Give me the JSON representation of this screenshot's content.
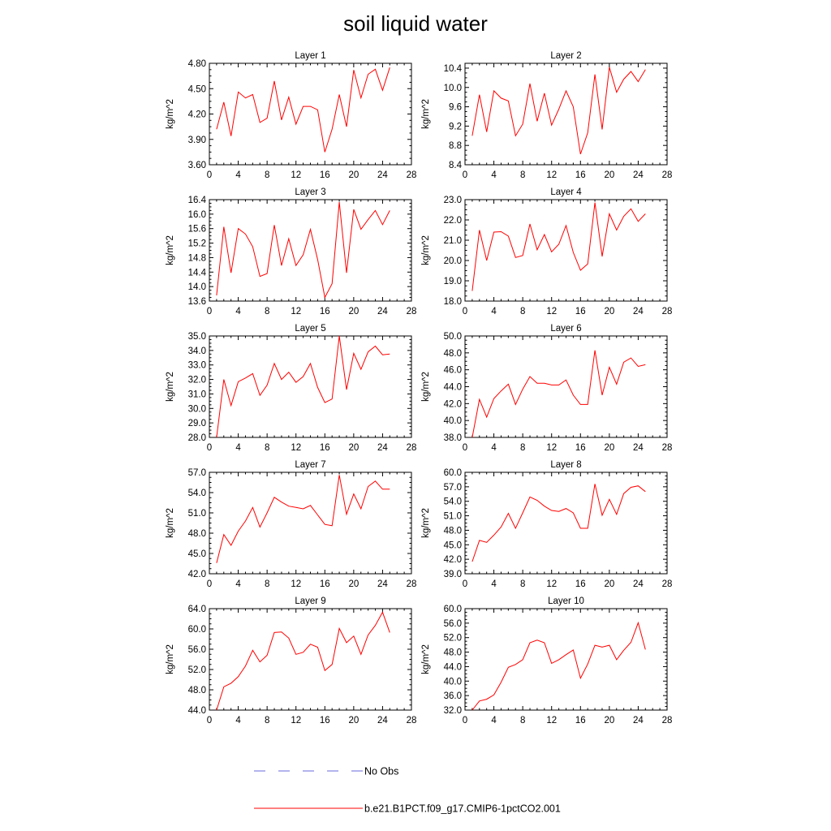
{
  "page": {
    "title": "soil liquid water"
  },
  "legend": {
    "items": [
      {
        "label": "No Obs",
        "color": "#6a6adf",
        "style": "dashed"
      },
      {
        "label": "b.e21.B1PCT.f09_g17.CMIP6-1pctCO2.001",
        "color": "#ff0000",
        "style": "solid"
      }
    ]
  },
  "chart_data": [
    {
      "type": "line",
      "title": "Layer 1",
      "ylabel": "kg/m^2",
      "xlabel": "",
      "xlim": [
        0,
        28
      ],
      "ylim": [
        3.6,
        4.8
      ],
      "xticks": [
        0,
        4,
        8,
        12,
        16,
        20,
        24,
        28
      ],
      "yticks": [
        3.6,
        3.9,
        4.2,
        4.5,
        4.8
      ],
      "ytick_labels": [
        "3.60",
        "3.90",
        "4.20",
        "4.50",
        "4.80"
      ],
      "series": [
        {
          "color": "#ff0000",
          "x": [
            1,
            2,
            3,
            4,
            5,
            6,
            7,
            8,
            9,
            10,
            11,
            12,
            13,
            14,
            15,
            16,
            17,
            18,
            19,
            20,
            21,
            22,
            23,
            24,
            25
          ],
          "y": [
            4.02,
            4.34,
            3.94,
            4.46,
            4.39,
            4.43,
            4.1,
            4.15,
            4.59,
            4.13,
            4.4,
            4.08,
            4.29,
            4.29,
            4.25,
            3.75,
            4.02,
            4.43,
            4.05,
            4.72,
            4.39,
            4.67,
            4.73,
            4.48,
            4.75
          ]
        }
      ]
    },
    {
      "type": "line",
      "title": "Layer 2",
      "ylabel": "kg/m^2",
      "xlabel": "",
      "xlim": [
        0,
        28
      ],
      "ylim": [
        8.4,
        10.5
      ],
      "xticks": [
        0,
        4,
        8,
        12,
        16,
        20,
        24,
        28
      ],
      "yticks": [
        8.4,
        8.8,
        9.2,
        9.6,
        10.0,
        10.4
      ],
      "ytick_labels": [
        "8.4",
        "8.8",
        "9.2",
        "9.6",
        "10.0",
        "10.4"
      ],
      "series": [
        {
          "color": "#ff0000",
          "x": [
            1,
            2,
            3,
            4,
            5,
            6,
            7,
            8,
            9,
            10,
            11,
            12,
            13,
            14,
            15,
            16,
            17,
            18,
            19,
            20,
            21,
            22,
            23,
            24,
            25
          ],
          "y": [
            9.0,
            9.85,
            9.08,
            9.93,
            9.78,
            9.72,
            9.0,
            9.24,
            10.08,
            9.3,
            9.88,
            9.22,
            9.55,
            9.93,
            9.6,
            8.62,
            9.06,
            10.27,
            9.13,
            10.42,
            9.9,
            10.17,
            10.33,
            10.12,
            10.37
          ]
        }
      ]
    },
    {
      "type": "line",
      "title": "Layer 3",
      "ylabel": "kg/m^2",
      "xlabel": "",
      "xlim": [
        0,
        28
      ],
      "ylim": [
        13.6,
        16.4
      ],
      "xticks": [
        0,
        4,
        8,
        12,
        16,
        20,
        24,
        28
      ],
      "yticks": [
        13.6,
        14.0,
        14.4,
        14.8,
        15.2,
        15.6,
        16.0,
        16.4
      ],
      "ytick_labels": [
        "13.6",
        "14.0",
        "14.4",
        "14.8",
        "15.2",
        "15.6",
        "16.0",
        "16.4"
      ],
      "series": [
        {
          "color": "#ff0000",
          "x": [
            1,
            2,
            3,
            4,
            5,
            6,
            7,
            8,
            9,
            10,
            11,
            12,
            13,
            14,
            15,
            16,
            17,
            18,
            19,
            20,
            21,
            22,
            23,
            24,
            25
          ],
          "y": [
            13.76,
            15.65,
            14.38,
            15.6,
            15.45,
            15.1,
            14.28,
            14.36,
            15.7,
            14.58,
            15.32,
            14.58,
            14.88,
            15.58,
            14.75,
            13.7,
            14.08,
            16.33,
            14.38,
            16.13,
            15.58,
            15.85,
            16.1,
            15.71,
            16.1
          ]
        }
      ]
    },
    {
      "type": "line",
      "title": "Layer 4",
      "ylabel": "kg/m^2",
      "xlabel": "",
      "xlim": [
        0,
        28
      ],
      "ylim": [
        18.0,
        23.0
      ],
      "xticks": [
        0,
        4,
        8,
        12,
        16,
        20,
        24,
        28
      ],
      "yticks": [
        18.0,
        19.0,
        20.0,
        21.0,
        22.0,
        23.0
      ],
      "ytick_labels": [
        "18.0",
        "19.0",
        "20.0",
        "21.0",
        "22.0",
        "23.0"
      ],
      "series": [
        {
          "color": "#ff0000",
          "x": [
            1,
            2,
            3,
            4,
            5,
            6,
            7,
            8,
            9,
            10,
            11,
            12,
            13,
            14,
            15,
            16,
            17,
            18,
            19,
            20,
            21,
            22,
            23,
            24,
            25
          ],
          "y": [
            18.5,
            21.5,
            20.0,
            21.4,
            21.42,
            21.2,
            20.15,
            20.25,
            21.8,
            20.53,
            21.28,
            20.43,
            20.8,
            21.72,
            20.4,
            19.52,
            19.83,
            22.85,
            20.2,
            22.3,
            21.5,
            22.18,
            22.55,
            21.93,
            22.3
          ]
        }
      ]
    },
    {
      "type": "line",
      "title": "Layer 5",
      "ylabel": "kg/m^2",
      "xlabel": "",
      "xlim": [
        0,
        28
      ],
      "ylim": [
        28.0,
        35.0
      ],
      "xticks": [
        0,
        4,
        8,
        12,
        16,
        20,
        24,
        28
      ],
      "yticks": [
        28.0,
        29.0,
        30.0,
        31.0,
        32.0,
        33.0,
        34.0,
        35.0
      ],
      "ytick_labels": [
        "28.0",
        "29.0",
        "30.0",
        "31.0",
        "32.0",
        "33.0",
        "34.0",
        "35.0"
      ],
      "series": [
        {
          "color": "#ff0000",
          "x": [
            1,
            2,
            3,
            4,
            5,
            6,
            7,
            8,
            9,
            10,
            11,
            12,
            13,
            14,
            15,
            16,
            17,
            18,
            19,
            20,
            21,
            22,
            23,
            24,
            25
          ],
          "y": [
            28.0,
            32.0,
            30.2,
            31.85,
            32.1,
            32.4,
            30.9,
            31.6,
            33.1,
            32.0,
            32.5,
            31.8,
            32.2,
            33.1,
            31.45,
            30.4,
            30.65,
            35.0,
            31.3,
            33.8,
            32.7,
            33.9,
            34.3,
            33.7,
            33.75
          ]
        }
      ]
    },
    {
      "type": "line",
      "title": "Layer 6",
      "ylabel": "kg/m^2",
      "xlabel": "",
      "xlim": [
        0,
        28
      ],
      "ylim": [
        38.0,
        50.0
      ],
      "xticks": [
        0,
        4,
        8,
        12,
        16,
        20,
        24,
        28
      ],
      "yticks": [
        38.0,
        40.0,
        42.0,
        44.0,
        46.0,
        48.0,
        50.0
      ],
      "ytick_labels": [
        "38.0",
        "40.0",
        "42.0",
        "44.0",
        "46.0",
        "48.0",
        "50.0"
      ],
      "series": [
        {
          "color": "#ff0000",
          "x": [
            1,
            2,
            3,
            4,
            5,
            6,
            7,
            8,
            9,
            10,
            11,
            12,
            13,
            14,
            15,
            16,
            17,
            18,
            19,
            20,
            21,
            22,
            23,
            24,
            25
          ],
          "y": [
            38.0,
            42.5,
            40.4,
            42.6,
            43.5,
            44.3,
            41.9,
            43.7,
            45.2,
            44.4,
            44.4,
            44.2,
            44.2,
            44.8,
            43.0,
            41.9,
            41.9,
            48.3,
            43.0,
            46.3,
            44.3,
            46.9,
            47.4,
            46.4,
            46.6
          ]
        }
      ]
    },
    {
      "type": "line",
      "title": "Layer 7",
      "ylabel": "kg/m^2",
      "xlabel": "",
      "xlim": [
        0,
        28
      ],
      "ylim": [
        42.0,
        57.0
      ],
      "xticks": [
        0,
        4,
        8,
        12,
        16,
        20,
        24,
        28
      ],
      "yticks": [
        42.0,
        45.0,
        48.0,
        51.0,
        54.0,
        57.0
      ],
      "ytick_labels": [
        "42.0",
        "45.0",
        "48.0",
        "51.0",
        "54.0",
        "57.0"
      ],
      "series": [
        {
          "color": "#ff0000",
          "x": [
            1,
            2,
            3,
            4,
            5,
            6,
            7,
            8,
            9,
            10,
            11,
            12,
            13,
            14,
            15,
            16,
            17,
            18,
            19,
            20,
            21,
            22,
            23,
            24,
            25
          ],
          "y": [
            43.6,
            47.8,
            46.2,
            48.3,
            49.8,
            51.8,
            48.9,
            51.0,
            53.3,
            52.6,
            52.0,
            51.8,
            51.6,
            52.1,
            50.7,
            49.3,
            49.1,
            56.6,
            50.8,
            53.8,
            51.6,
            54.9,
            55.7,
            54.5,
            54.5
          ]
        }
      ]
    },
    {
      "type": "line",
      "title": "Layer 8",
      "ylabel": "kg/m^2",
      "xlabel": "",
      "xlim": [
        0,
        28
      ],
      "ylim": [
        39.0,
        60.0
      ],
      "xticks": [
        0,
        4,
        8,
        12,
        16,
        20,
        24,
        28
      ],
      "yticks": [
        39.0,
        42.0,
        45.0,
        48.0,
        51.0,
        54.0,
        57.0,
        60.0
      ],
      "ytick_labels": [
        "39.0",
        "42.0",
        "45.0",
        "48.0",
        "51.0",
        "54.0",
        "57.0",
        "60.0"
      ],
      "series": [
        {
          "color": "#ff0000",
          "x": [
            1,
            2,
            3,
            4,
            5,
            6,
            7,
            8,
            9,
            10,
            11,
            12,
            13,
            14,
            15,
            16,
            17,
            18,
            19,
            20,
            21,
            22,
            23,
            24,
            25
          ],
          "y": [
            41.5,
            45.9,
            45.5,
            47.0,
            48.7,
            51.5,
            48.4,
            51.6,
            54.9,
            54.2,
            53.0,
            52.1,
            51.9,
            52.5,
            51.6,
            48.4,
            48.4,
            57.6,
            51.1,
            54.4,
            51.3,
            55.6,
            56.9,
            57.2,
            56.0
          ]
        }
      ]
    },
    {
      "type": "line",
      "title": "Layer 9",
      "ylabel": "kg/m^2",
      "xlabel": "",
      "xlim": [
        0,
        28
      ],
      "ylim": [
        44.0,
        64.0
      ],
      "xticks": [
        0,
        4,
        8,
        12,
        16,
        20,
        24,
        28
      ],
      "yticks": [
        44.0,
        48.0,
        52.0,
        56.0,
        60.0,
        64.0
      ],
      "ytick_labels": [
        "44.0",
        "48.0",
        "52.0",
        "56.0",
        "60.0",
        "64.0"
      ],
      "series": [
        {
          "color": "#ff0000",
          "x": [
            1,
            2,
            3,
            4,
            5,
            6,
            7,
            8,
            9,
            10,
            11,
            12,
            13,
            14,
            15,
            16,
            17,
            18,
            19,
            20,
            21,
            22,
            23,
            24,
            25
          ],
          "y": [
            44.0,
            48.6,
            49.3,
            50.6,
            52.7,
            55.8,
            53.5,
            54.8,
            59.3,
            59.4,
            58.2,
            55.0,
            55.4,
            57.0,
            56.4,
            51.8,
            53.0,
            60.1,
            57.3,
            58.6,
            55.0,
            58.8,
            60.7,
            63.3,
            59.3
          ]
        }
      ]
    },
    {
      "type": "line",
      "title": "Layer 10",
      "ylabel": "kg/m^2",
      "xlabel": "",
      "xlim": [
        0,
        28
      ],
      "ylim": [
        32.0,
        60.0
      ],
      "xticks": [
        0,
        4,
        8,
        12,
        16,
        20,
        24,
        28
      ],
      "yticks": [
        32.0,
        36.0,
        40.0,
        44.0,
        48.0,
        52.0,
        56.0,
        60.0
      ],
      "ytick_labels": [
        "32.0",
        "36.0",
        "40.0",
        "44.0",
        "48.0",
        "52.0",
        "56.0",
        "60.0"
      ],
      "series": [
        {
          "color": "#ff0000",
          "x": [
            1,
            2,
            3,
            4,
            5,
            6,
            7,
            8,
            9,
            10,
            11,
            12,
            13,
            14,
            15,
            16,
            17,
            18,
            19,
            20,
            21,
            22,
            23,
            24,
            25
          ],
          "y": [
            32.0,
            34.5,
            35.0,
            36.2,
            39.7,
            43.8,
            44.6,
            45.9,
            50.6,
            51.3,
            50.6,
            44.9,
            45.9,
            47.3,
            48.6,
            40.8,
            44.7,
            49.9,
            49.4,
            49.9,
            45.9,
            48.5,
            50.7,
            56.1,
            48.7
          ]
        }
      ]
    }
  ]
}
